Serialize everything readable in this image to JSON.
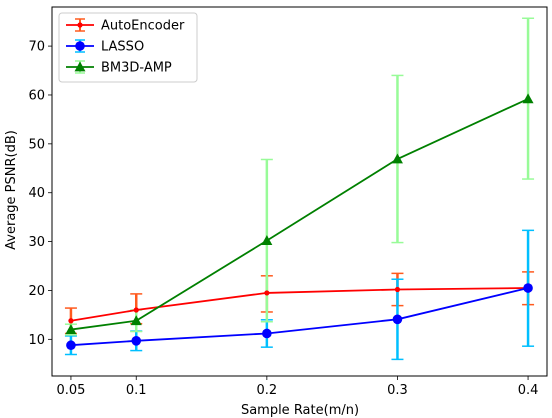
{
  "chart_data": {
    "type": "line",
    "xlabel": "Sample Rate(m/n)",
    "ylabel": "Average PSNR(dB)",
    "x": [
      0.05,
      0.1,
      0.2,
      0.3,
      0.4
    ],
    "x_tick_labels": [
      "0.05",
      "0.1",
      "0.2",
      "0.3",
      "0.4"
    ],
    "ylim": [
      2.5,
      78
    ],
    "yticks": [
      10,
      20,
      30,
      40,
      50,
      60,
      70
    ],
    "grid": false,
    "legend_position": "upper-left",
    "series": [
      {
        "name": "AutoEncoder",
        "color": "#ff0000",
        "error_color": "#ff5a1e",
        "marker": "dot",
        "values": [
          13.8,
          16.0,
          19.5,
          20.2,
          20.5
        ],
        "error_lower": [
          11.2,
          13.2,
          15.6,
          16.9,
          17.1
        ],
        "error_upper": [
          16.4,
          19.3,
          23.0,
          23.5,
          23.8
        ]
      },
      {
        "name": "LASSO",
        "color": "#0000ff",
        "error_color": "#00bfff",
        "marker": "circle",
        "values": [
          8.8,
          9.7,
          11.2,
          14.1,
          20.5
        ],
        "error_lower": [
          6.9,
          7.7,
          8.4,
          5.9,
          8.6
        ],
        "error_upper": [
          10.7,
          11.7,
          14.0,
          22.3,
          32.3
        ]
      },
      {
        "name": "BM3D-AMP",
        "color": "#008000",
        "error_color": "#98fb98",
        "marker": "triangle",
        "values": [
          12.0,
          13.8,
          30.2,
          46.9,
          59.2
        ],
        "error_lower": [
          10.9,
          11.6,
          13.6,
          29.8,
          42.8
        ],
        "error_upper": [
          13.1,
          16.0,
          46.8,
          64.0,
          75.7
        ]
      }
    ]
  }
}
